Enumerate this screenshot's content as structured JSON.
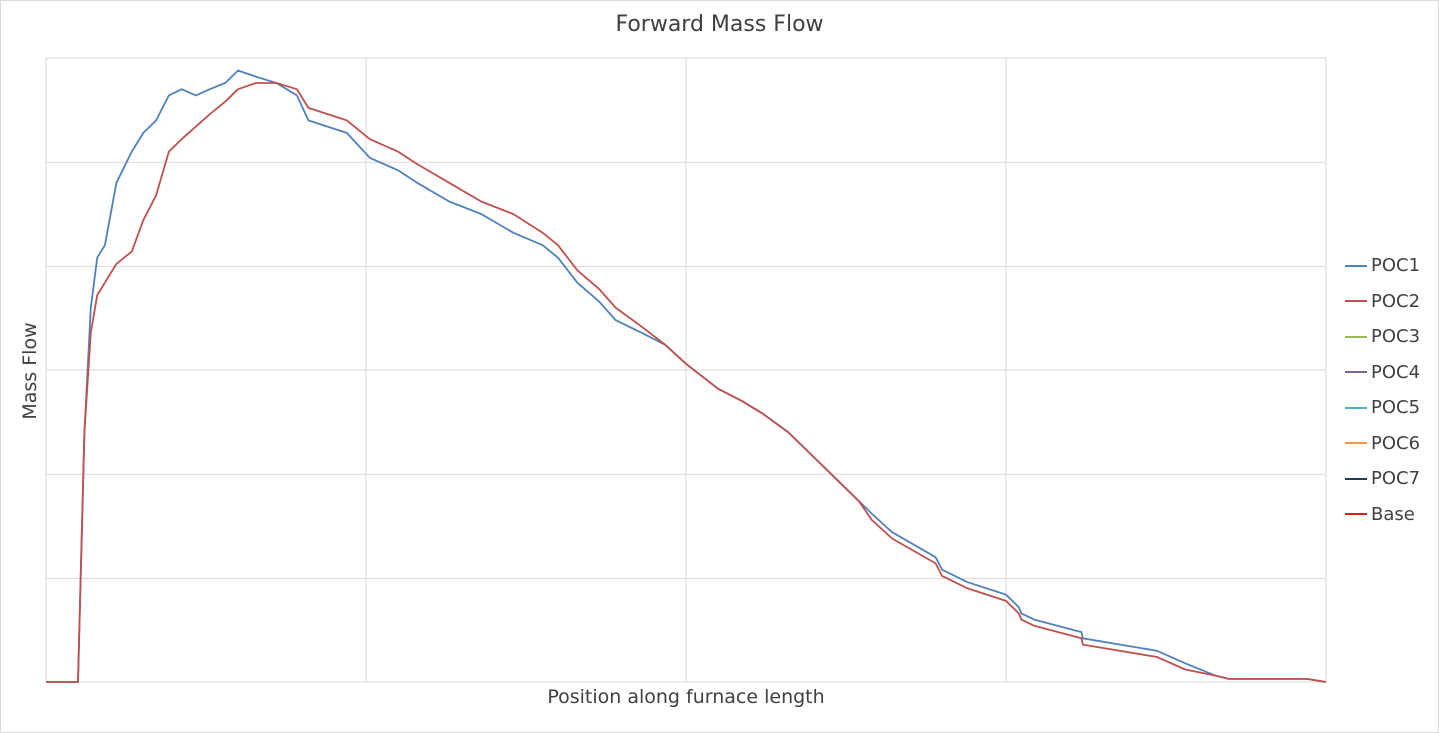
{
  "chart_data": {
    "type": "line",
    "title": "Forward Mass Flow",
    "xlabel": "Position along furnace length",
    "ylabel": "Mass Flow",
    "xlim": [
      0,
      100
    ],
    "ylim": [
      0,
      100
    ],
    "grid": true,
    "legend_position": "right",
    "series": [
      {
        "name": "POC1",
        "color": "#4f81bd",
        "x": [
          0,
          2.5,
          3,
          3.5,
          4,
          4.6,
          5.5,
          6.7,
          7.6,
          8.6,
          9.6,
          10.6,
          11.7,
          12.8,
          14,
          15,
          16.4,
          18,
          19.6,
          20.5,
          23.5,
          25.3,
          27.5,
          29,
          31.5,
          34,
          36.5,
          38.8,
          40,
          41.5,
          43.2,
          44.5,
          46.5,
          48.4,
          50,
          52.5,
          54.4,
          56,
          58,
          60,
          62,
          63.5,
          64.5,
          66.1,
          69.5,
          70,
          71,
          72,
          75,
          76,
          76.2,
          77.2,
          80.9,
          81,
          86.8,
          89,
          91.4,
          92.4,
          93,
          94,
          96.2,
          98.5,
          100
        ],
        "y": [
          0,
          0,
          40,
          60,
          68,
          70,
          80,
          85,
          88,
          90,
          94,
          95,
          94,
          95,
          96,
          98,
          97,
          96,
          94,
          90,
          88,
          84,
          82,
          80,
          77,
          75,
          72,
          70,
          68,
          64,
          61,
          58,
          56,
          54,
          51,
          47,
          45,
          43,
          40,
          36,
          32,
          29,
          27,
          24,
          20,
          18,
          17,
          16,
          14,
          12,
          11,
          10,
          8,
          7,
          5,
          3,
          1,
          0.5,
          0.5,
          0.5,
          0.5,
          0.5,
          0
        ]
      },
      {
        "name": "POC2",
        "color": "#c0504d",
        "x": [
          0,
          2.5,
          3,
          3.5,
          4,
          4.6,
          5.5,
          6.7,
          7.6,
          8.6,
          9.6,
          10.6,
          11.7,
          12.8,
          14,
          15,
          16.4,
          18,
          19.6,
          20.5,
          23.5,
          25.3,
          27.5,
          29,
          31.5,
          34,
          36.5,
          38.8,
          40,
          41.5,
          43.2,
          44.5,
          46.5,
          48.4,
          50,
          52.5,
          54.4,
          56,
          58,
          60,
          62,
          63.5,
          64.5,
          66.1,
          69.5,
          70,
          71,
          72,
          75,
          76,
          76.2,
          77.2,
          80.9,
          81,
          86.8,
          89,
          91.4,
          92.4,
          93,
          94,
          96.2,
          98.5,
          100
        ],
        "y": [
          0,
          0,
          40,
          56,
          62,
          64,
          67,
          69,
          74,
          78,
          85,
          87,
          89,
          91,
          93,
          95,
          96,
          96,
          95,
          92,
          90,
          87,
          85,
          83,
          80,
          77,
          75,
          72,
          70,
          66,
          63,
          60,
          57,
          54,
          51,
          47,
          45,
          43,
          40,
          36,
          32,
          29,
          26,
          23,
          19,
          17,
          16,
          15,
          13,
          11,
          10,
          9,
          7,
          6,
          4,
          2,
          1,
          0.5,
          0.5,
          0.5,
          0.5,
          0.5,
          0
        ]
      }
    ]
  },
  "legend": [
    {
      "label": "POC1",
      "color": "#4f81bd"
    },
    {
      "label": "POC2",
      "color": "#c0504d"
    },
    {
      "label": "POC3",
      "color": "#9bbb59"
    },
    {
      "label": "POC4",
      "color": "#8064a2"
    },
    {
      "label": "POC5",
      "color": "#4bacc6"
    },
    {
      "label": "POC6",
      "color": "#f79646"
    },
    {
      "label": "POC7",
      "color": "#1f3a5f"
    },
    {
      "label": "Base",
      "color": "#e41a1c"
    }
  ]
}
